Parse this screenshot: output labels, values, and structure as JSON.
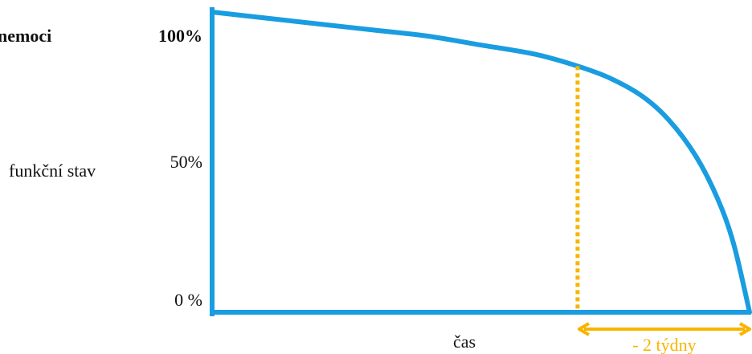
{
  "chart_data": {
    "type": "line",
    "title": "nemoci",
    "ylabel": "funkční stav",
    "xlabel": "čas",
    "y_ticks": [
      {
        "label": "100%",
        "value": 100
      },
      {
        "label": "50%",
        "value": 50
      },
      {
        "label": "0 %",
        "value": 0
      }
    ],
    "ylim": [
      0,
      100
    ],
    "xlim": [
      0,
      100
    ],
    "series": [
      {
        "color": "#1a9de0",
        "x": [
          0,
          10,
          20,
          30,
          40,
          50,
          60,
          68,
          74,
          80,
          85,
          90,
          94,
          97,
          100
        ],
        "y": [
          100,
          98,
          96,
          94,
          92,
          89,
          86,
          82,
          78,
          72,
          64,
          52,
          38,
          23,
          0
        ]
      }
    ],
    "annotation": {
      "label": "- 2 týdny",
      "x_marker": 68,
      "x_end": 100,
      "color": "#f7b500"
    },
    "axis_color": "#1a9de0"
  }
}
